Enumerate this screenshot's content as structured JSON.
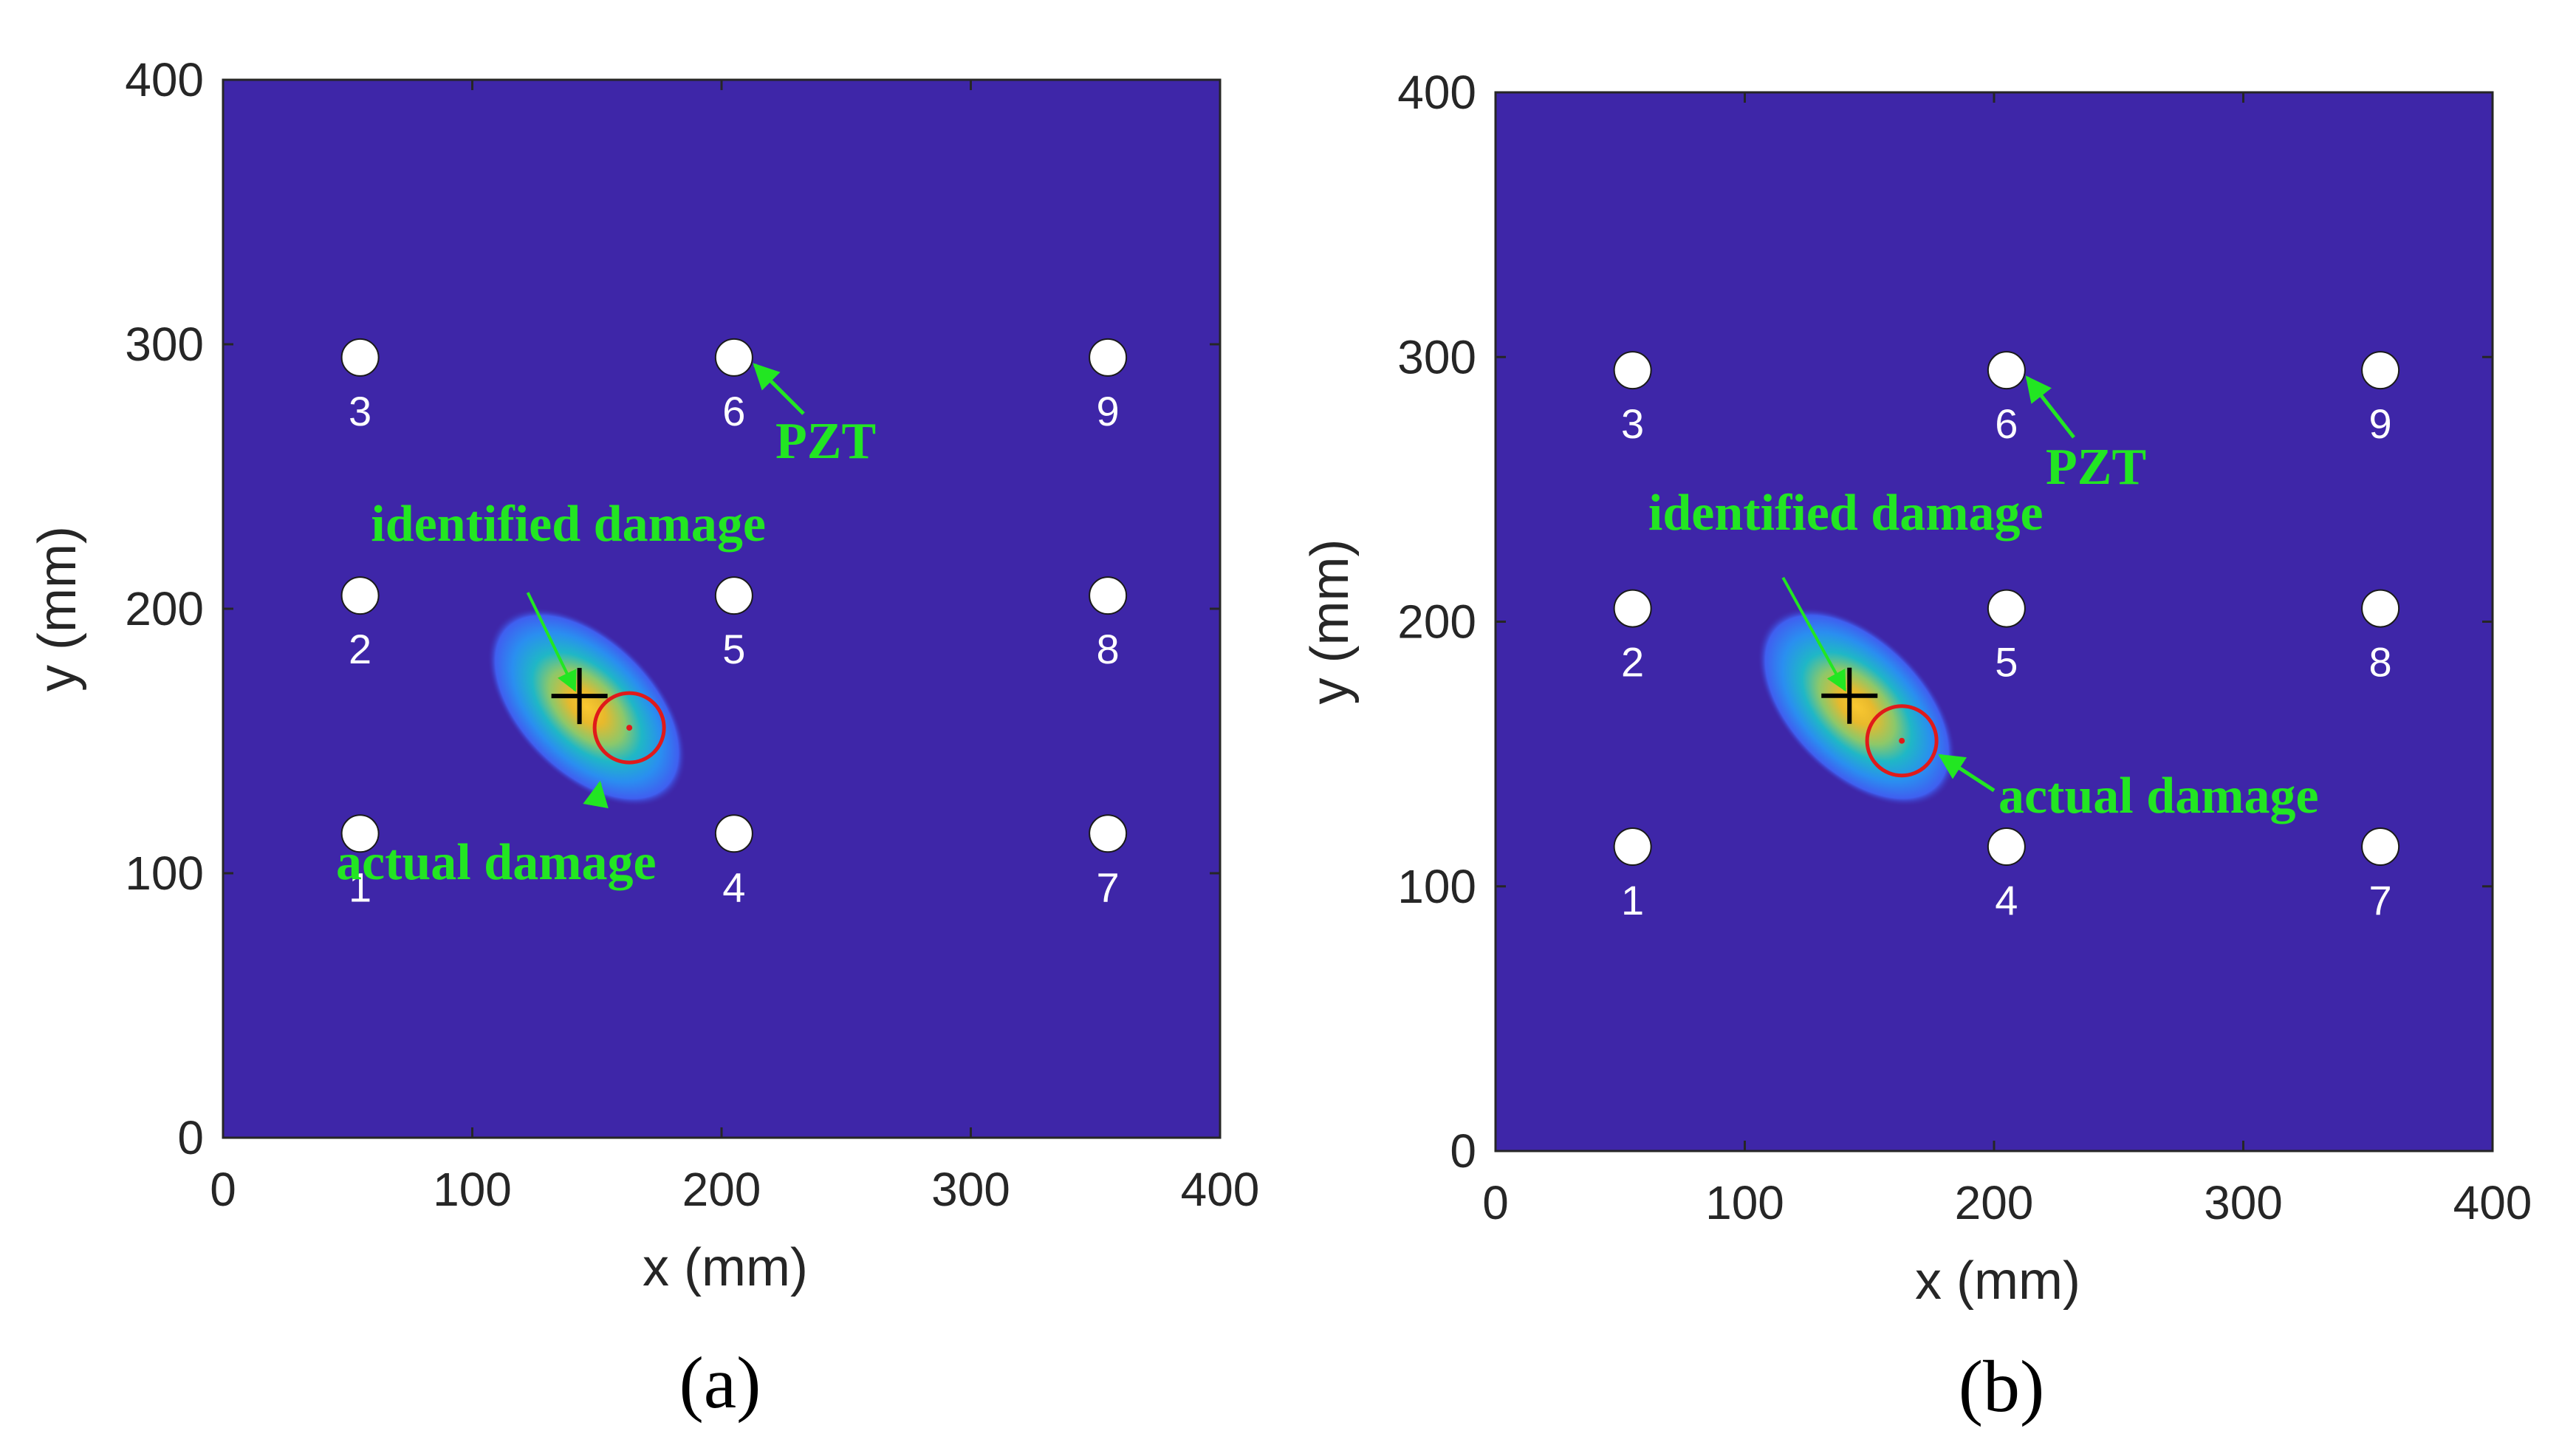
{
  "chart_data": [
    {
      "type": "heatmap",
      "panel": "(a)",
      "caption": "(a)",
      "xlabel": "x (mm)",
      "ylabel": "y (mm)",
      "xlim": [
        0,
        400
      ],
      "ylim": [
        0,
        400
      ],
      "xticks": [
        "0",
        "100",
        "200",
        "300",
        "400"
      ],
      "yticks": [
        "0",
        "100",
        "200",
        "300",
        "400"
      ],
      "background_color": "#3e26a8",
      "sensors": [
        {
          "id": "1",
          "x": 55,
          "y": 115
        },
        {
          "id": "2",
          "x": 55,
          "y": 205
        },
        {
          "id": "3",
          "x": 55,
          "y": 295
        },
        {
          "id": "4",
          "x": 205,
          "y": 115
        },
        {
          "id": "5",
          "x": 205,
          "y": 205
        },
        {
          "id": "6",
          "x": 205,
          "y": 295
        },
        {
          "id": "7",
          "x": 355,
          "y": 115
        },
        {
          "id": "8",
          "x": 355,
          "y": 205
        },
        {
          "id": "9",
          "x": 355,
          "y": 295
        }
      ],
      "identified_damage": {
        "x": 143,
        "y": 167
      },
      "actual_damage": {
        "x": 163,
        "y": 155
      },
      "annotations": {
        "pzt": "PZT",
        "identified": "identified damage",
        "actual": "actual damage"
      }
    },
    {
      "type": "heatmap",
      "panel": "(b)",
      "caption": "(b)",
      "xlabel": "x (mm)",
      "ylabel": "y (mm)",
      "xlim": [
        0,
        400
      ],
      "ylim": [
        0,
        400
      ],
      "xticks": [
        "0",
        "100",
        "200",
        "300",
        "400"
      ],
      "yticks": [
        "0",
        "100",
        "200",
        "300",
        "400"
      ],
      "background_color": "#3e26a8",
      "sensors": [
        {
          "id": "1",
          "x": 55,
          "y": 115
        },
        {
          "id": "2",
          "x": 55,
          "y": 205
        },
        {
          "id": "3",
          "x": 55,
          "y": 295
        },
        {
          "id": "4",
          "x": 205,
          "y": 115
        },
        {
          "id": "5",
          "x": 205,
          "y": 205
        },
        {
          "id": "6",
          "x": 205,
          "y": 295
        },
        {
          "id": "7",
          "x": 355,
          "y": 115
        },
        {
          "id": "8",
          "x": 355,
          "y": 205
        },
        {
          "id": "9",
          "x": 355,
          "y": 295
        }
      ],
      "identified_damage": {
        "x": 142,
        "y": 172
      },
      "actual_damage": {
        "x": 163,
        "y": 155
      },
      "annotations": {
        "pzt": "PZT",
        "identified": "identified damage",
        "actual": "actual damage"
      }
    }
  ]
}
